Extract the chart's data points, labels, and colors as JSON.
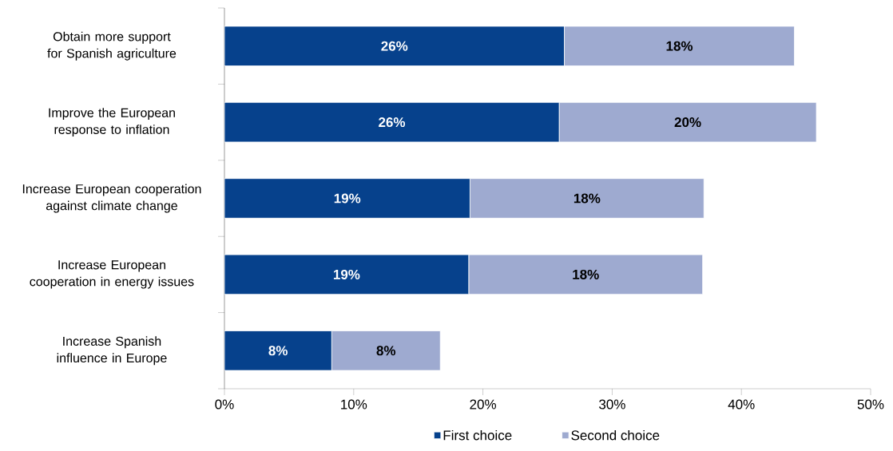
{
  "chart_data": {
    "type": "bar",
    "orientation": "horizontal",
    "stacked": true,
    "categories": [
      "Obtain more support for Spanish agriculture",
      "Improve the European response to inflation",
      "Increase European cooperation against climate change",
      "Increase European cooperation in energy issues",
      "Increase Spanish influence in Europe"
    ],
    "series": [
      {
        "name": "First choice",
        "color": "#06418c",
        "values": [
          26.3,
          25.9,
          19.0,
          18.9,
          8.3
        ],
        "value_labels": [
          "26%",
          "26%",
          "19%",
          "19%",
          "8%"
        ]
      },
      {
        "name": "Second choice",
        "color": "#9eaad0",
        "values": [
          17.8,
          19.9,
          18.1,
          18.1,
          8.4
        ],
        "value_labels": [
          "18%",
          "20%",
          "18%",
          "18%",
          "8%"
        ]
      }
    ],
    "xlim": [
      0,
      50
    ],
    "xticks": [
      {
        "value": 0,
        "label": "0%"
      },
      {
        "value": 10,
        "label": "10%"
      },
      {
        "value": 20,
        "label": "20%"
      },
      {
        "value": 30,
        "label": "30%"
      },
      {
        "value": 40,
        "label": "40%"
      },
      {
        "value": 50,
        "label": "50%"
      }
    ],
    "grid": false,
    "legend": "bottom"
  }
}
